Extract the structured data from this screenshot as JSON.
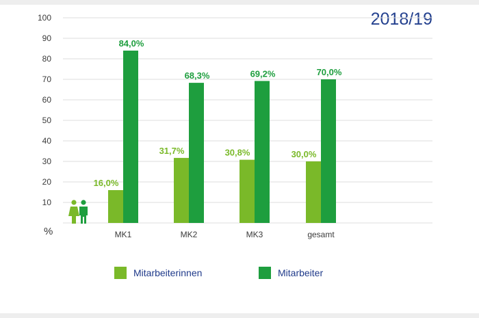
{
  "year_label": "2018/19",
  "chart_data": {
    "type": "bar",
    "categories": [
      "MK1",
      "MK2",
      "MK3",
      "gesamt"
    ],
    "series": [
      {
        "name": "Mitarbeiterinnen",
        "values": [
          16.0,
          31.7,
          30.8,
          30.0
        ],
        "labels": [
          "16,0%",
          "31,7%",
          "30,8%",
          "30,0%"
        ],
        "color": "#7ab929"
      },
      {
        "name": "Mitarbeiter",
        "values": [
          84.0,
          68.3,
          69.2,
          70.0
        ],
        "labels": [
          "84,0%",
          "68,3%",
          "69,2%",
          "70,0%"
        ],
        "color": "#1e9e3e"
      }
    ],
    "yticks": [
      "100",
      "90",
      "80",
      "70",
      "60",
      "50",
      "40",
      "30",
      "20",
      "10"
    ],
    "ylabel": "%",
    "ylim": [
      0,
      100
    ],
    "grid": true,
    "legend_position": "bottom"
  },
  "colors": {
    "grid": "#dcdcdc",
    "tick_text": "#3a3a3a",
    "label_light": "#7ab929",
    "label_dark": "#1e9e3e",
    "icon_female": "#7ab929",
    "icon_male": "#1e9e3e"
  }
}
